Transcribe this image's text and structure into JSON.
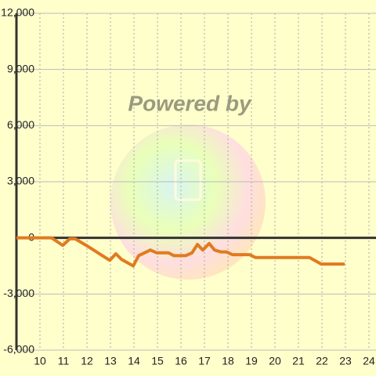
{
  "chart_data": {
    "type": "line",
    "watermark": "Powered by",
    "x": [
      9,
      10.5,
      10.97,
      11.27,
      11.5,
      11.97,
      12.97,
      13.23,
      13.47,
      13.97,
      14.2,
      14.7,
      14.97,
      15.47,
      15.7,
      16.2,
      16.47,
      16.7,
      16.93,
      17.2,
      17.43,
      17.7,
      17.93,
      18.2,
      18.93,
      19.17,
      21.47,
      21.97,
      22.97
    ],
    "series": [
      {
        "color": "#e07b20",
        "values": [
          0,
          0,
          -400,
          -50,
          -50,
          -400,
          -1200,
          -850,
          -1150,
          -1500,
          -950,
          -650,
          -800,
          -800,
          -950,
          -950,
          -800,
          -350,
          -650,
          -300,
          -650,
          -750,
          -750,
          -900,
          -900,
          -1050,
          -1050,
          -1400,
          -1400
        ]
      }
    ],
    "xlim": [
      9,
      24.3
    ],
    "xticks": [
      10,
      11,
      12,
      13,
      14,
      15,
      16,
      17,
      18,
      19,
      20,
      21,
      22,
      23,
      24
    ],
    "ylim": [
      -6000,
      12000
    ],
    "yticks": [
      {
        "value": -6000,
        "label": "-6,000"
      },
      {
        "value": -3000,
        "label": "-3,000"
      },
      0,
      {
        "value": 3000,
        "label": "3,000"
      },
      {
        "value": 6000,
        "label": "6,000"
      },
      {
        "value": 9000,
        "label": "9,000"
      },
      {
        "value": 12000,
        "label": "12,000"
      }
    ],
    "grid": true
  }
}
